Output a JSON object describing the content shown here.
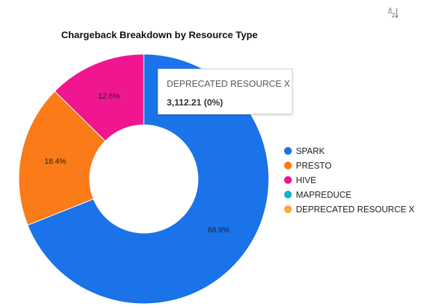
{
  "toolbar": {
    "sort_icon": "sort-alpha-icon",
    "sort_label_top": "A",
    "sort_label_bottom": "Z"
  },
  "chart_data": {
    "type": "pie",
    "variant": "donut",
    "title": "Chargeback Breakdown by Resource Type",
    "legend_position": "right",
    "series": [
      {
        "name": "SPARK",
        "percent": 68.9,
        "label": "68.9%",
        "color": "#1a73e8"
      },
      {
        "name": "PRESTO",
        "percent": 18.4,
        "label": "18.4%",
        "color": "#fa7b17"
      },
      {
        "name": "HIVE",
        "percent": 12.6,
        "label": "12.6%",
        "color": "#f0168f"
      },
      {
        "name": "MAPREDUCE",
        "percent": 0,
        "label": "",
        "color": "#12b5cb"
      },
      {
        "name": "DEPRECATED RESOURCE X",
        "percent": 0,
        "label": "",
        "color": "#f9ab3a"
      }
    ],
    "tooltip": {
      "name": "DEPRECATED RESOURCE X",
      "value": "3,112.21 (0%)"
    }
  }
}
